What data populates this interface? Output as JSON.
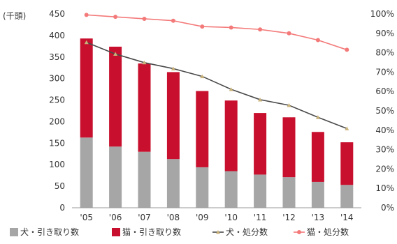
{
  "chart_data": {
    "type": "bar",
    "unit_label": "(千頭)",
    "categories": [
      "'05",
      "'06",
      "'07",
      "'08",
      "'09",
      "'10",
      "'11",
      "'12",
      "'13",
      "'14"
    ],
    "y_left": {
      "min": 0,
      "max": 450,
      "ticks": [
        "0",
        "50",
        "100",
        "150",
        "200",
        "250",
        "300",
        "350",
        "400",
        "450"
      ]
    },
    "y_right": {
      "min": 0,
      "max": 100,
      "ticks": [
        "0%",
        "10%",
        "20%",
        "30%",
        "40%",
        "50%",
        "60%",
        "70%",
        "80%",
        "90%",
        "100%"
      ]
    },
    "stacked_bars": [
      {
        "name": "犬・引き取り数",
        "color": "#a6a6a6",
        "values": [
          163,
          142,
          130,
          113,
          94,
          85,
          77,
          71,
          60,
          53
        ]
      },
      {
        "name": "猫・引き取り数",
        "color": "#c8102e",
        "values": [
          230,
          232,
          205,
          202,
          177,
          164,
          143,
          139,
          116,
          99
        ]
      }
    ],
    "lines": [
      {
        "name": "犬・処分数",
        "color": "#4a4a4a",
        "marker": "triangle",
        "axis": "left",
        "values": [
          384,
          357,
          337,
          323,
          305,
          275,
          251,
          238,
          210,
          184
        ]
      },
      {
        "name": "猫・処分数",
        "color": "#f47a7a",
        "marker": "circle",
        "axis": "right",
        "values": [
          99.5,
          98.5,
          97.5,
          96.5,
          93.5,
          93,
          92,
          90,
          86.5,
          81.5
        ]
      }
    ],
    "grid": false,
    "legend_position": "bottom"
  }
}
